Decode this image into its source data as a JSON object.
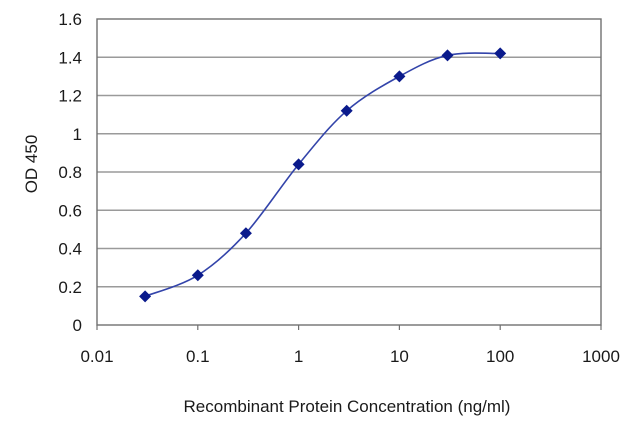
{
  "chart_data": {
    "type": "line",
    "title": "",
    "xlabel": "Recombinant Protein Concentration (ng/ml)",
    "ylabel": "OD 450",
    "xscale": "log",
    "xlim": [
      0.01,
      1000
    ],
    "ylim": [
      0,
      1.6
    ],
    "xticks": [
      "0.01",
      "0.1",
      "1",
      "10",
      "100",
      "1000"
    ],
    "yticks": [
      "0",
      "0.2",
      "0.4",
      "0.6",
      "0.8",
      "1",
      "1.2",
      "1.4",
      "1.6"
    ],
    "grid": "horizontal",
    "legend": "none",
    "series": [
      {
        "x": [
          0.03,
          0.1,
          0.3,
          1,
          3,
          10,
          30,
          100
        ],
        "y": [
          0.15,
          0.26,
          0.48,
          0.84,
          1.12,
          1.3,
          1.41,
          1.42
        ]
      }
    ],
    "colors": {
      "line": "#3344aa",
      "marker": "#0a1a8c",
      "grid": "#9a9a9a",
      "axis": "#707070"
    }
  }
}
